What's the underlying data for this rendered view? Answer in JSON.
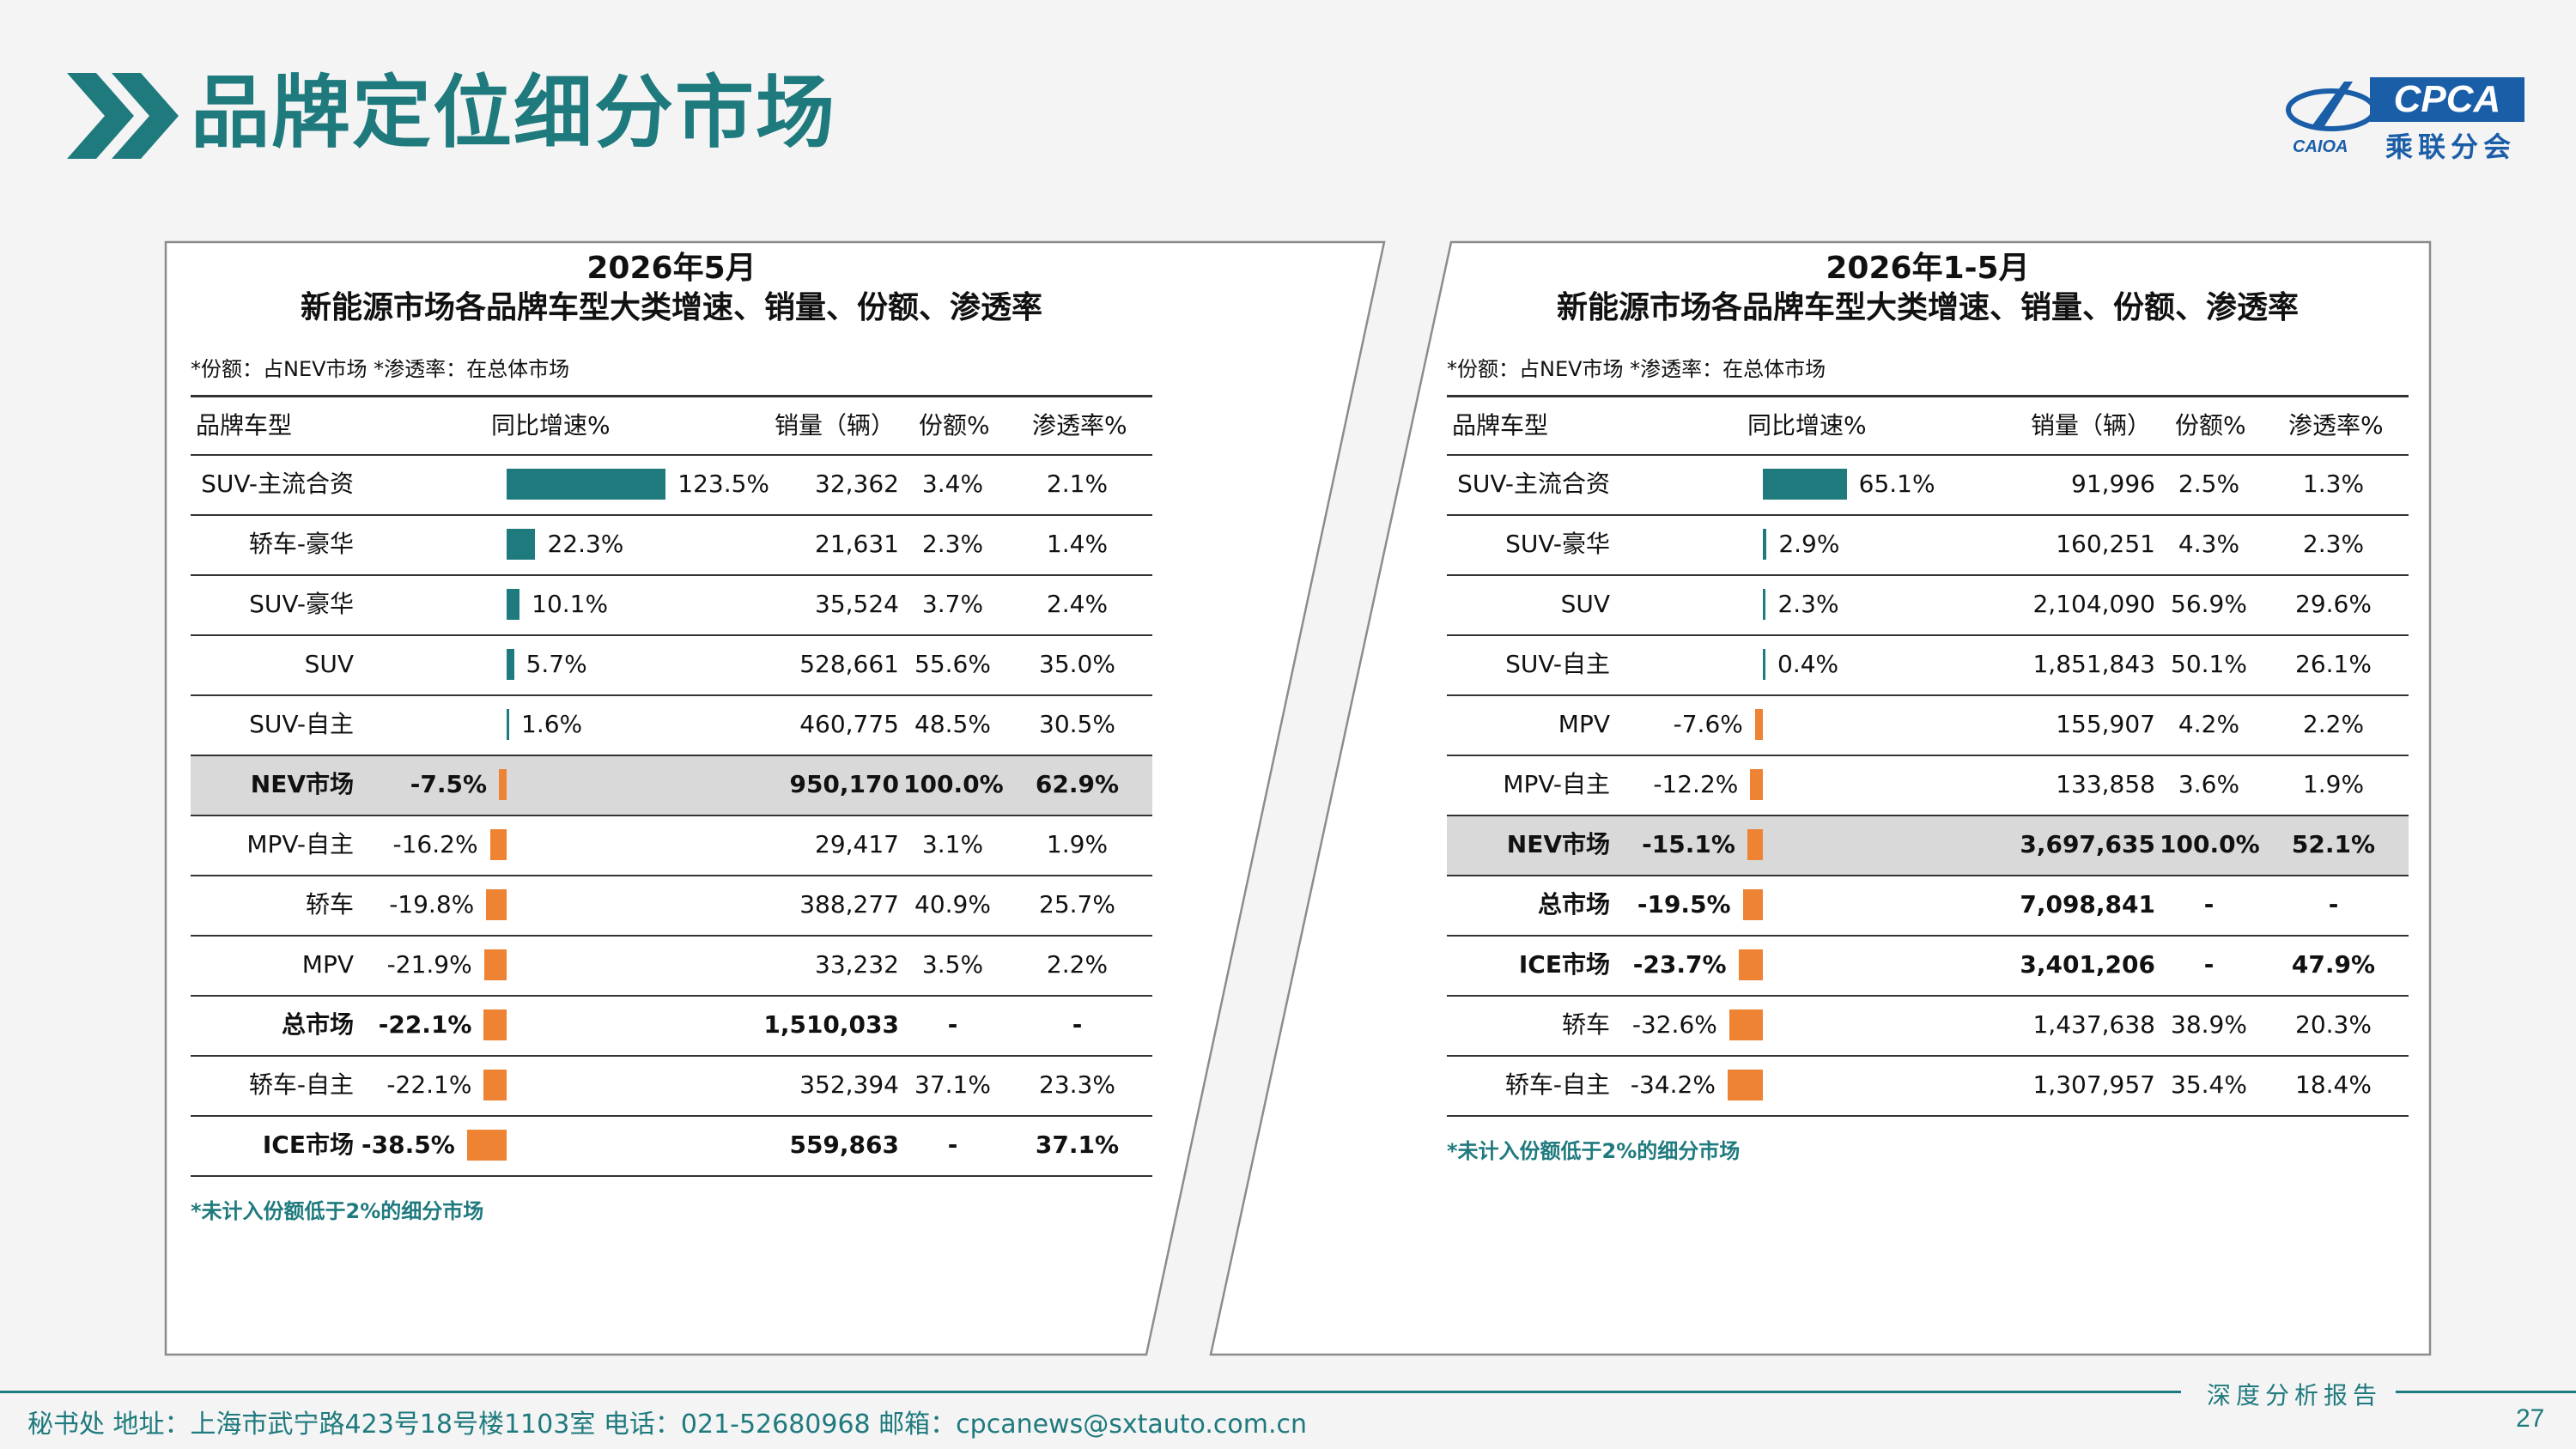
{
  "page": {
    "title": "品牌定位细分市场",
    "logo_text": "CPCA",
    "logo_cn": "乘联分会",
    "logo_small": "CAIOA",
    "contact": "秘书处  地址：上海市武宁路423号18号楼1103室  电话：021-52680968  邮箱：cpcanews@sxtauto.com.cn",
    "report_label": "深度分析报告",
    "page_number": "27"
  },
  "colors": {
    "teal": "#1f7a7e",
    "orange": "#ee8433",
    "highlight_row": "#d9d9d9"
  },
  "left": {
    "title1": "2026年5月",
    "title2": "新能源市场各品牌车型大类增速、销量、份额、渗透率",
    "note": "*份额：占NEV市场   *渗透率：在总体市场",
    "headers": [
      "品牌车型",
      "同比增速%",
      "销量（辆）",
      "份额%",
      "渗透率%"
    ],
    "footnote": "*未计入份额低于2%的细分市场",
    "rows": [
      {
        "name": "SUV-主流合资",
        "growth": 123.5,
        "growth_label": "123.5%",
        "sales": "32,362",
        "share": "3.4%",
        "penetration": "2.1%",
        "bold": false,
        "highlight": false
      },
      {
        "name": "轿车-豪华",
        "growth": 22.3,
        "growth_label": "22.3%",
        "sales": "21,631",
        "share": "2.3%",
        "penetration": "1.4%",
        "bold": false,
        "highlight": false
      },
      {
        "name": "SUV-豪华",
        "growth": 10.1,
        "growth_label": "10.1%",
        "sales": "35,524",
        "share": "3.7%",
        "penetration": "2.4%",
        "bold": false,
        "highlight": false
      },
      {
        "name": "SUV",
        "growth": 5.7,
        "growth_label": "5.7%",
        "sales": "528,661",
        "share": "55.6%",
        "penetration": "35.0%",
        "bold": false,
        "highlight": false
      },
      {
        "name": "SUV-自主",
        "growth": 1.6,
        "growth_label": "1.6%",
        "sales": "460,775",
        "share": "48.5%",
        "penetration": "30.5%",
        "bold": false,
        "highlight": false
      },
      {
        "name": "NEV市场",
        "growth": -7.5,
        "growth_label": "-7.5%",
        "sales": "950,170",
        "share": "100.0%",
        "penetration": "62.9%",
        "bold": true,
        "highlight": true
      },
      {
        "name": "MPV-自主",
        "growth": -16.2,
        "growth_label": "-16.2%",
        "sales": "29,417",
        "share": "3.1%",
        "penetration": "1.9%",
        "bold": false,
        "highlight": false
      },
      {
        "name": "轿车",
        "growth": -19.8,
        "growth_label": "-19.8%",
        "sales": "388,277",
        "share": "40.9%",
        "penetration": "25.7%",
        "bold": false,
        "highlight": false
      },
      {
        "name": "MPV",
        "growth": -21.9,
        "growth_label": "-21.9%",
        "sales": "33,232",
        "share": "3.5%",
        "penetration": "2.2%",
        "bold": false,
        "highlight": false
      },
      {
        "name": "总市场",
        "growth": -22.1,
        "growth_label": "-22.1%",
        "sales": "1,510,033",
        "share": "-",
        "penetration": "-",
        "bold": true,
        "highlight": false
      },
      {
        "name": "轿车-自主",
        "growth": -22.1,
        "growth_label": "-22.1%",
        "sales": "352,394",
        "share": "37.1%",
        "penetration": "23.3%",
        "bold": false,
        "highlight": false
      },
      {
        "name": "ICE市场",
        "growth": -38.5,
        "growth_label": "-38.5%",
        "sales": "559,863",
        "share": "-",
        "penetration": "37.1%",
        "bold": true,
        "highlight": false
      }
    ]
  },
  "right": {
    "title1": "2026年1-5月",
    "title2": "新能源市场各品牌车型大类增速、销量、份额、渗透率",
    "note": "*份额：占NEV市场   *渗透率：在总体市场",
    "headers": [
      "品牌车型",
      "同比增速%",
      "销量（辆）",
      "份额%",
      "渗透率%"
    ],
    "footnote": "*未计入份额低于2%的细分市场",
    "rows": [
      {
        "name": "SUV-主流合资",
        "growth": 65.1,
        "growth_label": "65.1%",
        "sales": "91,996",
        "share": "2.5%",
        "penetration": "1.3%",
        "bold": false,
        "highlight": false
      },
      {
        "name": "SUV-豪华",
        "growth": 2.9,
        "growth_label": "2.9%",
        "sales": "160,251",
        "share": "4.3%",
        "penetration": "2.3%",
        "bold": false,
        "highlight": false
      },
      {
        "name": "SUV",
        "growth": 2.3,
        "growth_label": "2.3%",
        "sales": "2,104,090",
        "share": "56.9%",
        "penetration": "29.6%",
        "bold": false,
        "highlight": false
      },
      {
        "name": "SUV-自主",
        "growth": 0.4,
        "growth_label": "0.4%",
        "sales": "1,851,843",
        "share": "50.1%",
        "penetration": "26.1%",
        "bold": false,
        "highlight": false
      },
      {
        "name": "MPV",
        "growth": -7.6,
        "growth_label": "-7.6%",
        "sales": "155,907",
        "share": "4.2%",
        "penetration": "2.2%",
        "bold": false,
        "highlight": false
      },
      {
        "name": "MPV-自主",
        "growth": -12.2,
        "growth_label": "-12.2%",
        "sales": "133,858",
        "share": "3.6%",
        "penetration": "1.9%",
        "bold": false,
        "highlight": false
      },
      {
        "name": "NEV市场",
        "growth": -15.1,
        "growth_label": "-15.1%",
        "sales": "3,697,635",
        "share": "100.0%",
        "penetration": "52.1%",
        "bold": true,
        "highlight": true
      },
      {
        "name": "总市场",
        "growth": -19.5,
        "growth_label": "-19.5%",
        "sales": "7,098,841",
        "share": "-",
        "penetration": "-",
        "bold": true,
        "highlight": false
      },
      {
        "name": "ICE市场",
        "growth": -23.7,
        "growth_label": "-23.7%",
        "sales": "3,401,206",
        "share": "-",
        "penetration": "47.9%",
        "bold": true,
        "highlight": false
      },
      {
        "name": "轿车",
        "growth": -32.6,
        "growth_label": "-32.6%",
        "sales": "1,437,638",
        "share": "38.9%",
        "penetration": "20.3%",
        "bold": false,
        "highlight": false
      },
      {
        "name": "轿车-自主",
        "growth": -34.2,
        "growth_label": "-34.2%",
        "sales": "1,307,957",
        "share": "35.4%",
        "penetration": "18.4%",
        "bold": false,
        "highlight": false
      }
    ]
  }
}
